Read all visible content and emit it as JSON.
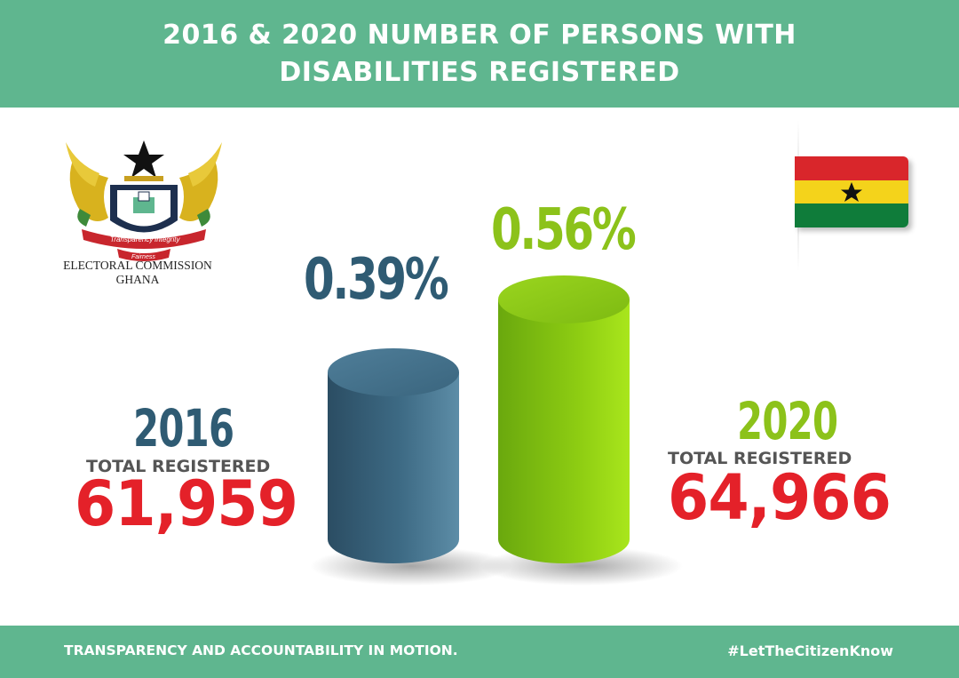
{
  "header": {
    "title": "2016  & 2020 NUMBER OF PERSONS WITH DISABILITIES REGISTERED"
  },
  "emblem": {
    "line1": "ELECTORAL COMMISSION",
    "line2": "GHANA",
    "motto": [
      "Transparency",
      "Integrity",
      "Fairness"
    ],
    "seal_text": "GHANA ELECTORAL COMMISSION"
  },
  "left": {
    "year": "2016",
    "label": "TOTAL REGISTERED",
    "total": "61,959",
    "percent": "0.39%"
  },
  "right": {
    "year": "2020",
    "label": "TOTAL REGISTERED",
    "total": "64,966",
    "percent": "0.56%"
  },
  "footer": {
    "slogan": "TRANSPARENCY AND ACCOUNTABILITY IN MOTION.",
    "hashtag": "#LetTheCitizenKnow"
  },
  "colors": {
    "brand_green": "#5fb68f",
    "blue": "#2f5b73",
    "lime": "#8cc21a",
    "red": "#e42129"
  },
  "chart_data": {
    "type": "bar",
    "categories": [
      "2016",
      "2020"
    ],
    "values": [
      0.39,
      0.56
    ],
    "unit": "%",
    "totals": [
      61959,
      64966
    ]
  }
}
